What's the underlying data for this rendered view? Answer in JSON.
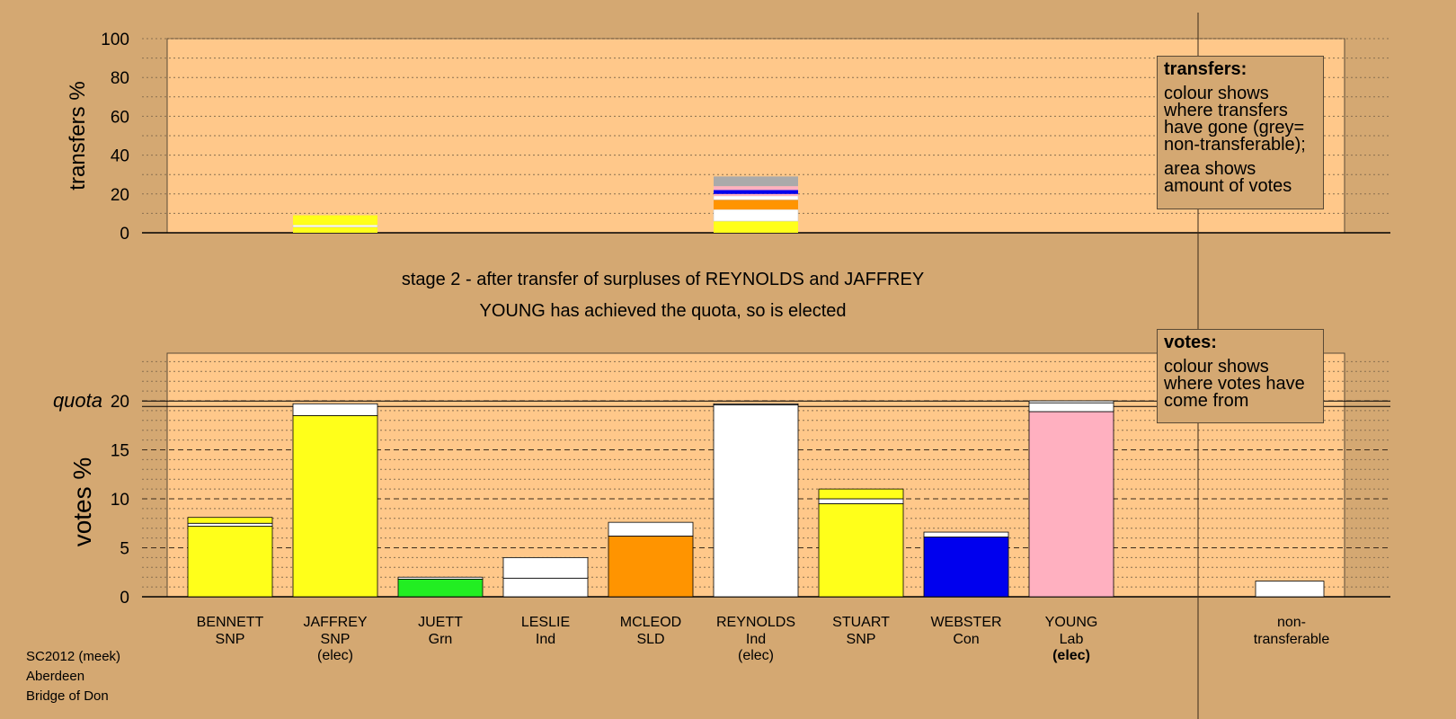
{
  "chart_data": {
    "type": "bar",
    "stage_lines": [
      "stage 2 - after transfer of surpluses of REYNOLDS and JAFFREY",
      "YOUNG has achieved the quota, so is elected"
    ],
    "colors": {
      "SNP": "#FFFF1A",
      "Grn": "#22EE22",
      "Ind": "#FFFFFF",
      "SLD": "#FF9400",
      "Con": "#0000EE",
      "Lab": "#FFB0C0",
      "nontransferable": "#AAAAAA"
    },
    "transfers": {
      "ylabel": "transfers %",
      "ylim": [
        0,
        100
      ],
      "ticks": [
        0,
        20,
        40,
        60,
        80,
        100
      ],
      "bars": [
        {
          "candidate_index": 1,
          "segments": [
            {
              "color": "#FFFF1A",
              "value": 3
            },
            {
              "color": "#FFFFFF",
              "value": 1
            },
            {
              "color": "#FFFF1A",
              "value": 5
            }
          ]
        },
        {
          "candidate_index": 5,
          "segments": [
            {
              "color": "#FFFF1A",
              "value": 6
            },
            {
              "color": "#FFFFFF",
              "value": 6
            },
            {
              "color": "#FF9400",
              "value": 5
            },
            {
              "color": "#FFFFFF",
              "value": 2
            },
            {
              "color": "#FFB0C0",
              "value": 1
            },
            {
              "color": "#0000EE",
              "value": 2
            },
            {
              "color": "#FFB0C0",
              "value": 2
            },
            {
              "color": "#AAAAAA",
              "value": 5
            }
          ]
        }
      ]
    },
    "votes": {
      "ylabel": "votes %",
      "ylim": [
        0,
        25
      ],
      "ticks": [
        0,
        5,
        10,
        15,
        20
      ],
      "quota": 19.7,
      "quota_label": "quota",
      "candidates": [
        {
          "name": "BENNETT",
          "party": "SNP",
          "status": "",
          "segments": [
            {
              "color": "#FFFF1A",
              "value": 7.2
            },
            {
              "color": "#FFFFFF",
              "value": 0.3
            },
            {
              "color": "#FFFF1A",
              "value": 0.6
            }
          ]
        },
        {
          "name": "JAFFREY",
          "party": "SNP",
          "status": "(elec)",
          "segments": [
            {
              "color": "#FFFF1A",
              "value": 18.5
            },
            {
              "color": "#FFFFFF",
              "value": 1.2
            }
          ]
        },
        {
          "name": "JUETT",
          "party": "Grn",
          "status": "",
          "segments": [
            {
              "color": "#22EE22",
              "value": 1.8
            },
            {
              "color": "#FFFFFF",
              "value": 0.2
            }
          ]
        },
        {
          "name": "LESLIE",
          "party": "Ind",
          "status": "",
          "segments": [
            {
              "color": "#FFFFFF",
              "value": 1.9
            },
            {
              "color": "#FFFFFF",
              "value": 2.1
            }
          ]
        },
        {
          "name": "MCLEOD",
          "party": "SLD",
          "status": "",
          "segments": [
            {
              "color": "#FF9400",
              "value": 6.2
            },
            {
              "color": "#FFFFFF",
              "value": 1.4
            }
          ]
        },
        {
          "name": "REYNOLDS",
          "party": "Ind",
          "status": "(elec)",
          "segments": [
            {
              "color": "#FFFFFF",
              "value": 19.6
            },
            {
              "color": "#FFFFFF",
              "value": 0.1
            }
          ]
        },
        {
          "name": "STUART",
          "party": "SNP",
          "status": "",
          "segments": [
            {
              "color": "#FFFF1A",
              "value": 9.5
            },
            {
              "color": "#FFFFFF",
              "value": 0.5
            },
            {
              "color": "#FFFF1A",
              "value": 1.0
            }
          ]
        },
        {
          "name": "WEBSTER",
          "party": "Con",
          "status": "",
          "segments": [
            {
              "color": "#0000EE",
              "value": 6.1
            },
            {
              "color": "#FFFFFF",
              "value": 0.5
            }
          ]
        },
        {
          "name": "YOUNG",
          "party": "Lab",
          "status": "(elec)",
          "status_bold": true,
          "segments": [
            {
              "color": "#FFB0C0",
              "value": 18.9
            },
            {
              "color": "#FFFFFF",
              "value": 0.9
            },
            {
              "color": "#FFFFFF",
              "value": 0.2
            }
          ]
        }
      ],
      "nontransferable": {
        "label_line1": "non-",
        "label_line2": "transferable",
        "value": 1.6
      }
    }
  },
  "legend_transfers": {
    "heading": "transfers:",
    "para1": "colour shows where transfers have gone (grey= non-transferable);",
    "para2": "area shows amount of votes"
  },
  "legend_votes": {
    "heading": "votes:",
    "para1": "colour shows where votes have come from"
  },
  "footer": {
    "line1": "SC2012 (meek)",
    "line2": "Aberdeen",
    "line3": "Bridge of Don"
  }
}
